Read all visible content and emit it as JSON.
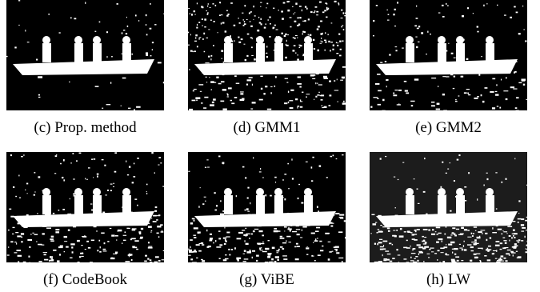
{
  "figures": [
    {
      "caption": "(c) Prop. method"
    },
    {
      "caption": "(d) GMM1"
    },
    {
      "caption": "(e) GMM2"
    },
    {
      "caption": "(f) CodeBook"
    },
    {
      "caption": "(g) ViBE"
    },
    {
      "caption": "(h) LW"
    }
  ]
}
